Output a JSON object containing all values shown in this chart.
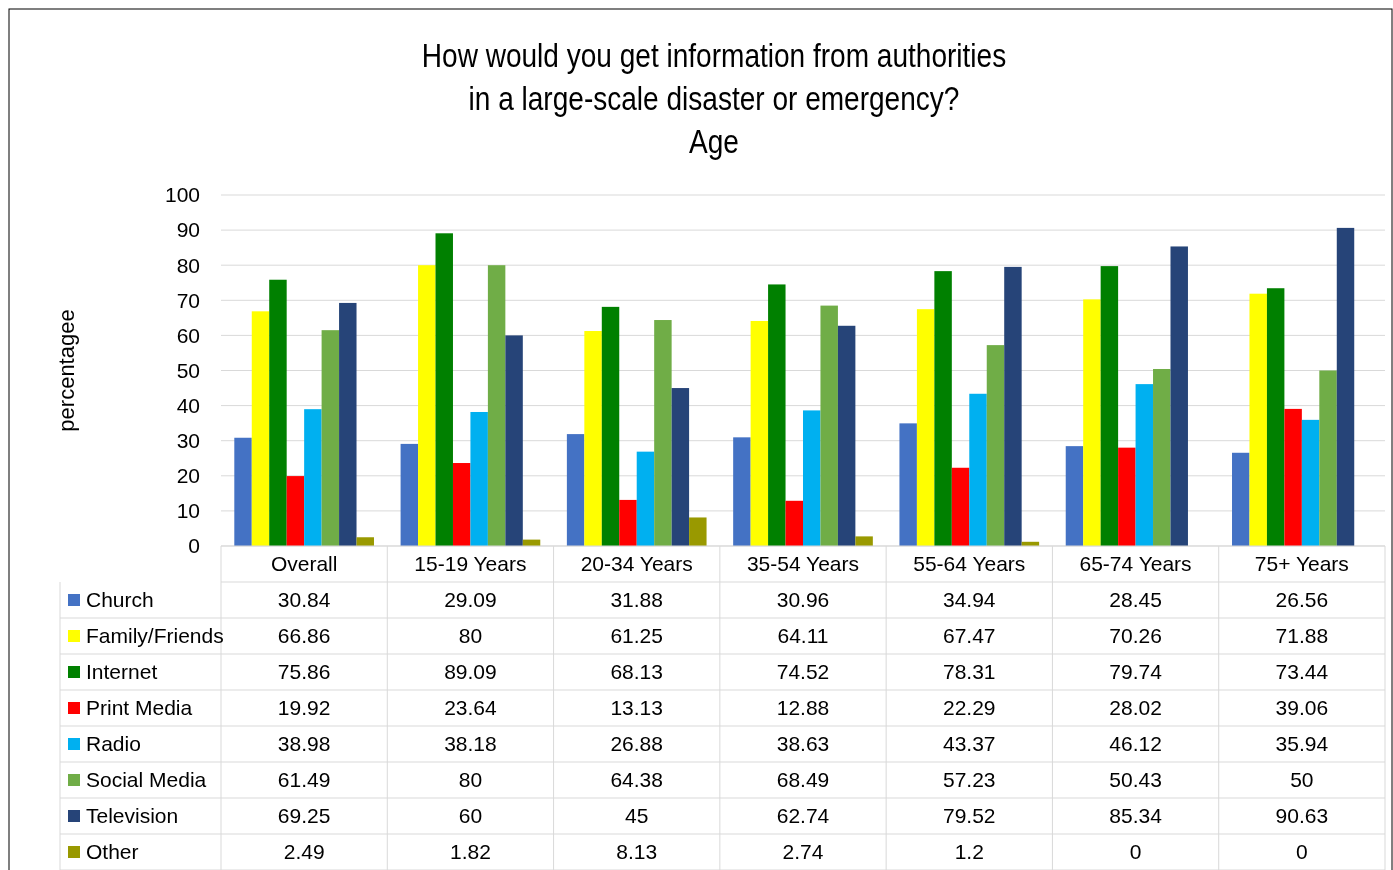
{
  "chart_data": {
    "type": "bar",
    "title": "How would you get information from authorities\nin a large-scale disaster or emergency?\nAge",
    "ylabel": "percentagee",
    "categories": [
      "Overall",
      "15-19 Years",
      "20-34 Years",
      "35-54 Years",
      "55-64 Years",
      "65-74 Years",
      "75+ Years"
    ],
    "series": [
      {
        "name": "Church",
        "color": "#4472c4",
        "values": [
          30.84,
          29.09,
          31.88,
          30.96,
          34.94,
          28.45,
          26.56
        ]
      },
      {
        "name": "Family/Friends",
        "color": "#ffff00",
        "values": [
          66.86,
          80,
          61.25,
          64.11,
          67.47,
          70.26,
          71.88
        ]
      },
      {
        "name": "Internet",
        "color": "#008000",
        "values": [
          75.86,
          89.09,
          68.13,
          74.52,
          78.31,
          79.74,
          73.44
        ]
      },
      {
        "name": "Print Media",
        "color": "#ff0000",
        "values": [
          19.92,
          23.64,
          13.13,
          12.88,
          22.29,
          28.02,
          39.06
        ]
      },
      {
        "name": "Radio",
        "color": "#00b0f0",
        "values": [
          38.98,
          38.18,
          26.88,
          38.63,
          43.37,
          46.12,
          35.94
        ]
      },
      {
        "name": "Social Media",
        "color": "#70ad47",
        "values": [
          61.49,
          80,
          64.38,
          68.49,
          57.23,
          50.43,
          50
        ]
      },
      {
        "name": "Television",
        "color": "#264478",
        "values": [
          69.25,
          60,
          45,
          62.74,
          79.52,
          85.34,
          90.63
        ]
      },
      {
        "name": "Other",
        "color": "#999900",
        "values": [
          2.49,
          1.82,
          8.13,
          2.74,
          1.2,
          0,
          0
        ]
      }
    ],
    "ylim": [
      0,
      100
    ],
    "yticks": [
      0,
      10,
      20,
      30,
      40,
      50,
      60,
      70,
      80,
      90,
      100
    ],
    "grid": "y",
    "legend": "bottom",
    "data_labels": true
  }
}
